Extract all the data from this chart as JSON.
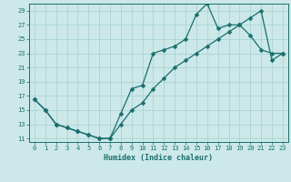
{
  "xlabel": "Humidex (Indice chaleur)",
  "bg_color": "#cce8e8",
  "grid_color": "#aad4d4",
  "line_color": "#1a6e6e",
  "xlim": [
    -0.5,
    23.5
  ],
  "ylim": [
    10.5,
    30.0
  ],
  "xticks": [
    0,
    1,
    2,
    3,
    4,
    5,
    6,
    7,
    8,
    9,
    10,
    11,
    12,
    13,
    14,
    15,
    16,
    17,
    18,
    19,
    20,
    21,
    22,
    23
  ],
  "yticks": [
    11,
    13,
    15,
    17,
    19,
    21,
    23,
    25,
    27,
    29
  ],
  "series": [
    {
      "x": [
        0,
        1,
        2,
        3,
        4,
        5,
        6,
        7,
        8,
        9,
        10,
        11,
        12,
        13,
        14,
        15,
        16,
        17,
        18,
        19,
        20,
        21,
        22,
        23
      ],
      "y": [
        16.5,
        15.0,
        13.0,
        12.5,
        12.0,
        11.5,
        11.0,
        11.0,
        14.5,
        18.0,
        18.5,
        23.0,
        23.5,
        24.0,
        25.0,
        28.5,
        30.0,
        26.5,
        27.0,
        27.0,
        25.5,
        23.5,
        23.0,
        23.0
      ]
    },
    {
      "x": [
        0,
        1,
        2,
        3,
        4,
        5,
        6,
        7,
        8,
        9,
        10,
        11,
        12,
        13,
        14,
        15,
        16,
        17,
        18,
        19,
        20,
        21,
        22,
        23
      ],
      "y": [
        16.5,
        15.0,
        13.0,
        12.5,
        12.0,
        11.5,
        11.0,
        11.0,
        13.0,
        15.0,
        16.0,
        18.0,
        19.5,
        21.0,
        22.0,
        23.0,
        24.0,
        25.0,
        26.0,
        27.0,
        28.0,
        29.0,
        22.0,
        23.0
      ]
    }
  ],
  "tick_fontsize": 5.0,
  "xlabel_fontsize": 6.0,
  "marker_size": 2.5,
  "line_width": 0.9
}
